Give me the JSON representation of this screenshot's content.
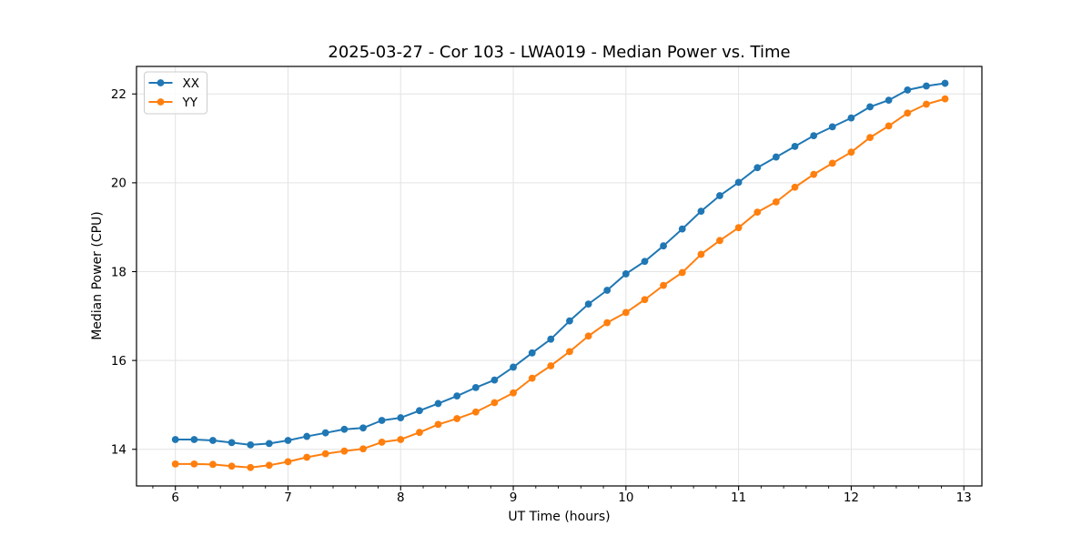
{
  "chart_data": {
    "type": "line",
    "title": "2025-03-27 - Cor 103 - LWA019 - Median Power vs. Time",
    "xlabel": "UT Time (hours)",
    "ylabel": "Median Power (CPU)",
    "xlim": [
      5.655,
      13.16
    ],
    "ylim": [
      13.175,
      22.62
    ],
    "xticks": [
      6,
      7,
      8,
      9,
      10,
      11,
      12,
      13
    ],
    "yticks": [
      14,
      16,
      18,
      20,
      22
    ],
    "x_minor_step": 0.2,
    "grid": true,
    "legend_position": "upper left",
    "x": [
      6.0,
      6.167,
      6.333,
      6.5,
      6.667,
      6.833,
      7.0,
      7.167,
      7.333,
      7.5,
      7.667,
      7.833,
      8.0,
      8.167,
      8.333,
      8.5,
      8.667,
      8.833,
      9.0,
      9.167,
      9.333,
      9.5,
      9.667,
      9.833,
      10.0,
      10.167,
      10.333,
      10.5,
      10.667,
      10.833,
      11.0,
      11.167,
      11.333,
      11.5,
      11.667,
      11.833,
      12.0,
      12.167,
      12.333,
      12.5,
      12.667,
      12.833
    ],
    "series": [
      {
        "name": "XX",
        "color": "#1f77b4",
        "marker": "circle",
        "values": [
          14.22,
          14.22,
          14.2,
          14.15,
          14.1,
          14.13,
          14.2,
          14.29,
          14.37,
          14.45,
          14.48,
          14.65,
          14.71,
          14.87,
          15.03,
          15.2,
          15.39,
          15.56,
          15.85,
          16.17,
          16.48,
          16.89,
          17.27,
          17.58,
          17.95,
          18.23,
          18.58,
          18.96,
          19.36,
          19.71,
          20.01,
          20.34,
          20.58,
          20.82,
          21.06,
          21.26,
          21.46,
          21.71,
          21.86,
          22.09,
          22.18,
          22.24
        ]
      },
      {
        "name": "YY",
        "color": "#ff7f0e",
        "marker": "circle",
        "values": [
          13.67,
          13.67,
          13.66,
          13.62,
          13.59,
          13.64,
          13.72,
          13.82,
          13.9,
          13.96,
          14.01,
          14.16,
          14.22,
          14.38,
          14.56,
          14.69,
          14.84,
          15.05,
          15.27,
          15.6,
          15.88,
          16.2,
          16.55,
          16.85,
          17.08,
          17.37,
          17.69,
          17.98,
          18.39,
          18.7,
          18.99,
          19.34,
          19.57,
          19.9,
          20.19,
          20.44,
          20.69,
          21.02,
          21.28,
          21.57,
          21.77,
          21.89
        ]
      }
    ]
  },
  "style": {
    "series_blue": "#1f77b4",
    "series_orange": "#ff7f0e",
    "grid_color": "#e3e3e3",
    "spine_color": "#000000",
    "legend_border": "#cccccc",
    "background": "#ffffff"
  }
}
